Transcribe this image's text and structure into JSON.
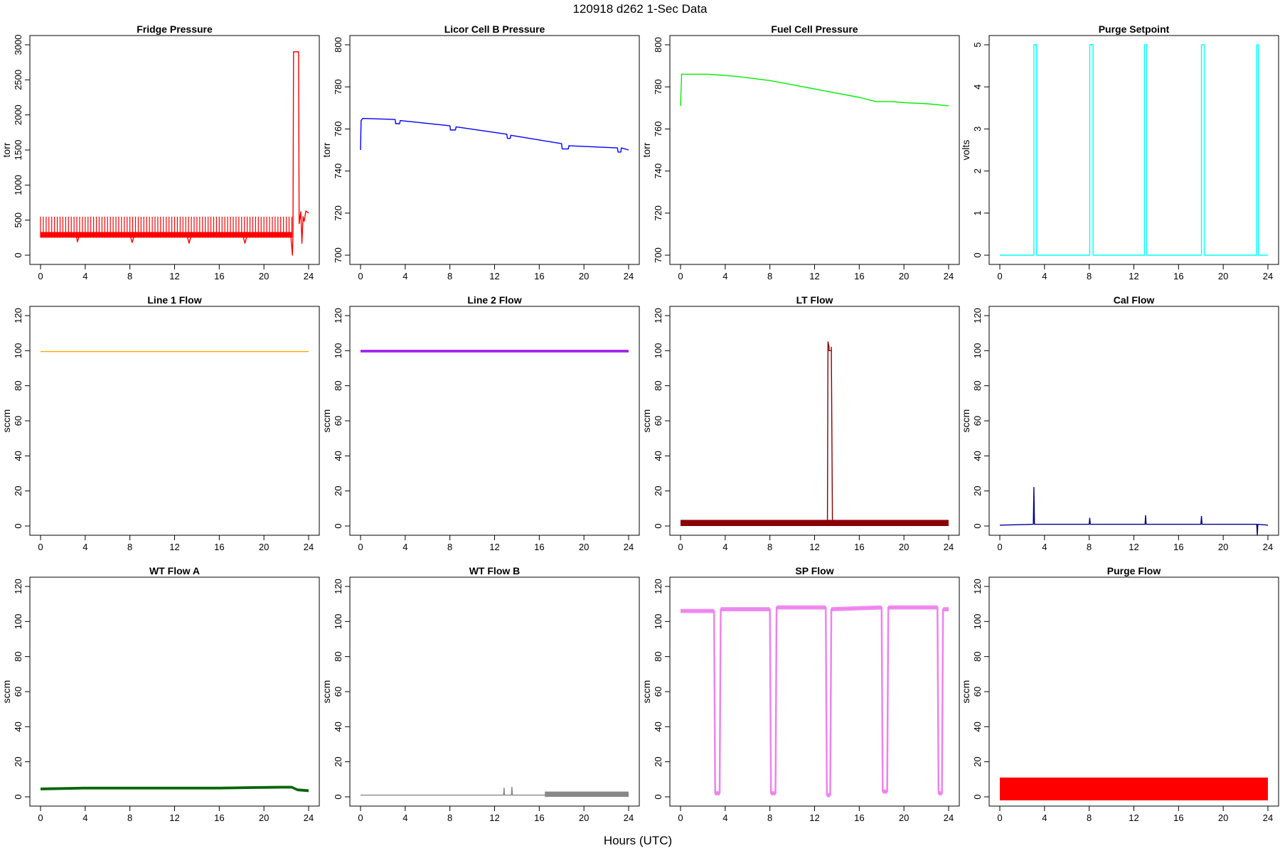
{
  "figure": {
    "title": "120918   d262   1-Sec Data",
    "xlabel": "Hours (UTC)"
  },
  "chart_data": [
    {
      "type": "line",
      "title": "Fridge Pressure",
      "ylabel": "torr",
      "color": "#ff0000",
      "xlim": [
        0,
        24
      ],
      "ylim": [
        0,
        3000
      ],
      "xticks": [
        0,
        4,
        8,
        12,
        16,
        20,
        24
      ],
      "yticks": [
        0,
        500,
        1000,
        1500,
        2000,
        2500,
        3000
      ],
      "band": {
        "from": 0,
        "to": 22.5,
        "low": 250,
        "high": 550,
        "period": 0.25
      },
      "x": [
        0,
        3.2,
        3.3,
        3.5,
        8,
        8.2,
        8.4,
        13.1,
        13.3,
        13.5,
        18.1,
        18.3,
        18.5,
        22.4,
        22.55,
        22.6,
        22.65,
        23.1,
        23.15,
        23.3,
        23.4,
        23.5,
        23.6,
        23.75,
        24
      ],
      "y": [
        290,
        290,
        190,
        290,
        290,
        180,
        290,
        290,
        170,
        290,
        290,
        170,
        290,
        290,
        0,
        300,
        2900,
        2900,
        450,
        620,
        170,
        550,
        480,
        630,
        600
      ]
    },
    {
      "type": "line",
      "title": "Licor Cell B Pressure",
      "ylabel": "torr",
      "color": "#0000ff",
      "xlim": [
        0,
        24
      ],
      "ylim": [
        700,
        800
      ],
      "xticks": [
        0,
        4,
        8,
        12,
        16,
        20,
        24
      ],
      "yticks": [
        700,
        720,
        740,
        760,
        780,
        800
      ],
      "x": [
        0,
        0.05,
        0.2,
        3.1,
        3.15,
        3.5,
        3.55,
        8,
        8.05,
        8.5,
        8.55,
        13.1,
        13.15,
        13.4,
        13.45,
        18,
        18.05,
        18.6,
        18.65,
        23,
        23.05,
        23.3,
        23.35,
        24
      ],
      "y": [
        750,
        764,
        765,
        764.5,
        762.5,
        762.5,
        764,
        761.5,
        759.5,
        759.5,
        761,
        757.5,
        755.5,
        755.5,
        757,
        753,
        750.5,
        750.5,
        752,
        751,
        749,
        749,
        751,
        750
      ]
    },
    {
      "type": "line",
      "title": "Fuel Cell Pressure",
      "ylabel": "torr",
      "color": "#00ee00",
      "xlim": [
        0,
        24
      ],
      "ylim": [
        700,
        800
      ],
      "xticks": [
        0,
        4,
        8,
        12,
        16,
        20,
        24
      ],
      "yticks": [
        700,
        720,
        740,
        760,
        780,
        800
      ],
      "x": [
        0,
        0.1,
        0.3,
        2.5,
        5,
        8,
        10,
        12,
        14,
        16,
        17.5,
        18,
        19,
        20,
        22,
        24
      ],
      "y": [
        771,
        786,
        786,
        786,
        785,
        783,
        781,
        779,
        777,
        775,
        773,
        773,
        773,
        772.5,
        772,
        771
      ]
    },
    {
      "type": "line",
      "title": "Purge Setpoint",
      "ylabel": "volts",
      "color": "#00ffff",
      "xlim": [
        0,
        24
      ],
      "ylim": [
        0,
        5
      ],
      "xticks": [
        0,
        4,
        8,
        12,
        16,
        20,
        24
      ],
      "yticks": [
        0,
        1,
        2,
        3,
        4,
        5
      ],
      "x": [
        0,
        3.05,
        3.05,
        3.3,
        3.3,
        8.05,
        8.05,
        8.35,
        8.35,
        12.95,
        12.95,
        13.15,
        13.15,
        18.05,
        18.05,
        18.3,
        18.3,
        23.0,
        23.0,
        23.15,
        23.15,
        24
      ],
      "y": [
        0,
        0,
        5,
        5,
        0,
        0,
        5,
        5,
        0,
        0,
        5,
        5,
        0,
        0,
        5,
        5,
        0,
        0,
        5,
        5,
        0,
        0
      ]
    },
    {
      "type": "line",
      "title": "Line 1 Flow",
      "ylabel": "sccm",
      "color": "#ffa500",
      "xlim": [
        0,
        24
      ],
      "ylim": [
        0,
        120
      ],
      "xticks": [
        0,
        4,
        8,
        12,
        16,
        20,
        24
      ],
      "yticks": [
        0,
        20,
        40,
        60,
        80,
        100,
        120
      ],
      "x": [
        0,
        24
      ],
      "y": [
        99.5,
        99.5
      ]
    },
    {
      "type": "line",
      "title": "Line 2 Flow",
      "ylabel": "sccm",
      "color": "#a020f0",
      "xlim": [
        0,
        24
      ],
      "ylim": [
        0,
        120
      ],
      "xticks": [
        0,
        4,
        8,
        12,
        16,
        20,
        24
      ],
      "yticks": [
        0,
        20,
        40,
        60,
        80,
        100,
        120
      ],
      "band": {
        "from": 0,
        "to": 24,
        "low": 99,
        "high": 100.5
      },
      "x": [
        0,
        24
      ],
      "y": [
        99.7,
        99.7
      ]
    },
    {
      "type": "line",
      "title": "LT Flow",
      "ylabel": "sccm",
      "color": "#8b0000",
      "xlim": [
        0,
        24
      ],
      "ylim": [
        0,
        120
      ],
      "xticks": [
        0,
        4,
        8,
        12,
        16,
        20,
        24
      ],
      "yticks": [
        0,
        20,
        40,
        60,
        80,
        100,
        120
      ],
      "band": {
        "from": 0,
        "to": 24,
        "low": 0,
        "high": 3.5
      },
      "x": [
        0,
        13.15,
        13.2,
        13.3,
        13.3,
        13.5,
        13.5,
        13.6,
        24
      ],
      "y": [
        1.5,
        1.5,
        105,
        102,
        100,
        100,
        102,
        1.5,
        1.5
      ]
    },
    {
      "type": "line",
      "title": "Cal Flow",
      "ylabel": "sccm",
      "color": "#00008b",
      "xlim": [
        0,
        24
      ],
      "ylim": [
        0,
        120
      ],
      "xticks": [
        0,
        4,
        8,
        12,
        16,
        20,
        24
      ],
      "yticks": [
        0,
        20,
        40,
        60,
        80,
        100,
        120
      ],
      "x": [
        0,
        3,
        3.05,
        3.1,
        8,
        8.05,
        8.1,
        13,
        13.05,
        13.1,
        18,
        18.05,
        18.1,
        22.5,
        23,
        23.05,
        23.1,
        24
      ],
      "y": [
        0.5,
        1,
        22,
        1,
        1,
        4.5,
        1,
        1,
        6,
        1,
        1,
        5.5,
        1,
        1,
        1,
        -5,
        1,
        0.5
      ]
    },
    {
      "type": "line",
      "title": "WT Flow A",
      "ylabel": "sccm",
      "color": "#006400",
      "xlim": [
        0,
        24
      ],
      "ylim": [
        0,
        120
      ],
      "xticks": [
        0,
        4,
        8,
        12,
        16,
        20,
        24
      ],
      "yticks": [
        0,
        20,
        40,
        60,
        80,
        100,
        120
      ],
      "band": {
        "from": 0,
        "to": 24,
        "low": -0.8,
        "high": 0.8,
        "relative": true
      },
      "x": [
        0,
        4,
        8,
        12,
        16,
        19,
        21.5,
        22.5,
        23,
        24
      ],
      "y": [
        4.5,
        5,
        5,
        5,
        5,
        5.3,
        5.5,
        5.5,
        4,
        3.5
      ]
    },
    {
      "type": "line",
      "title": "WT Flow B",
      "ylabel": "sccm",
      "color": "#888888",
      "xlim": [
        0,
        24
      ],
      "ylim": [
        0,
        120
      ],
      "xticks": [
        0,
        4,
        8,
        12,
        16,
        20,
        24
      ],
      "yticks": [
        0,
        20,
        40,
        60,
        80,
        100,
        120
      ],
      "band": {
        "from": 16.5,
        "to": 24,
        "low": 0,
        "high": 3
      },
      "x": [
        0,
        12,
        12.8,
        12.85,
        12.9,
        13.5,
        13.55,
        13.6,
        14,
        24
      ],
      "y": [
        1,
        1,
        1,
        5,
        1,
        1,
        5.5,
        1,
        1,
        1
      ]
    },
    {
      "type": "line",
      "title": "SP Flow",
      "ylabel": "sccm",
      "color": "#ee82ee",
      "xlim": [
        0,
        24
      ],
      "ylim": [
        0,
        120
      ],
      "xticks": [
        0,
        4,
        8,
        12,
        16,
        20,
        24
      ],
      "yticks": [
        0,
        20,
        40,
        60,
        80,
        100,
        120
      ],
      "band": {
        "from": 0,
        "to": 24,
        "low": -1.2,
        "high": 1.2,
        "relative": true
      },
      "x": [
        0,
        3.0,
        3.1,
        3.5,
        3.6,
        8.0,
        8.1,
        8.5,
        8.6,
        13.0,
        13.1,
        13.4,
        13.5,
        18.0,
        18.1,
        18.5,
        18.6,
        23.0,
        23.1,
        23.4,
        23.5,
        24
      ],
      "y": [
        106,
        106,
        2,
        2,
        107,
        107,
        2,
        2,
        108,
        108,
        1,
        1,
        107,
        108,
        3,
        3,
        108,
        108,
        2,
        2,
        107,
        107
      ]
    },
    {
      "type": "line",
      "title": "Purge Flow",
      "ylabel": "sccm",
      "color": "#ff0000",
      "xlim": [
        0,
        24
      ],
      "ylim": [
        0,
        120
      ],
      "xticks": [
        0,
        4,
        8,
        12,
        16,
        20,
        24
      ],
      "yticks": [
        0,
        20,
        40,
        60,
        80,
        100,
        120
      ],
      "band": {
        "from": 0,
        "to": 24,
        "low": -2,
        "high": 11
      },
      "x": [
        0,
        24
      ],
      "y": [
        5,
        5
      ]
    }
  ]
}
